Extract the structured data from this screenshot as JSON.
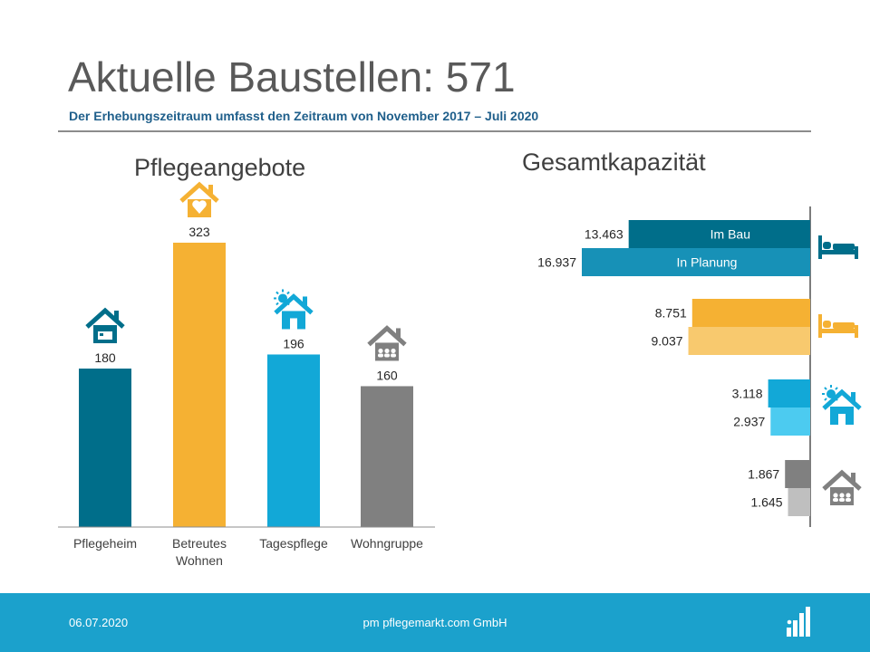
{
  "header": {
    "title": "Aktuelle Baustellen: 571",
    "subtitle": "Der Erhebungszeitraum umfasst den Zeitraum von November 2017 – Juli 2020"
  },
  "colors": {
    "pflegeheim": "#006e8a",
    "betreutes": "#f5b133",
    "tagespflege": "#12a8d7",
    "wohngruppe": "#808080",
    "pflegeheim_light": "#1791b7",
    "betreutes_light": "#f8c96e",
    "tagespflege_light": "#4ccbf0",
    "wohngruppe_light": "#bfbfbf"
  },
  "chart_data": [
    {
      "type": "bar",
      "title": "Pflegeangebote",
      "categories": [
        "Pflegeheim",
        "Betreutes Wohnen",
        "Tagespflege",
        "Wohngruppe"
      ],
      "values": [
        180,
        323,
        196,
        160
      ],
      "value_labels": [
        "180",
        "323",
        "196",
        "160"
      ],
      "icons": [
        "house-bed-icon",
        "house-heart-icon",
        "house-sun-icon",
        "house-people-icon"
      ],
      "ylim": [
        0,
        340
      ],
      "grid": false
    },
    {
      "type": "bar",
      "orientation": "horizontal",
      "title": "Gesamtkapazität",
      "groups": [
        "Pflegeheim",
        "Betreutes Wohnen",
        "Tagespflege",
        "Wohngruppe"
      ],
      "series": [
        {
          "name": "Im Bau",
          "values": [
            13463,
            8751,
            3118,
            1867
          ],
          "labels": [
            "13.463",
            "8.751",
            "3.118",
            "1.867"
          ]
        },
        {
          "name": "In Planung",
          "values": [
            16937,
            9037,
            2937,
            1645
          ],
          "labels": [
            "16.937",
            "9.037",
            "2.937",
            "1.645"
          ]
        }
      ],
      "icons": [
        "bed-icon",
        "bed-icon",
        "house-sun-icon",
        "house-people-icon"
      ],
      "xlim": [
        0,
        17500
      ],
      "grid": false
    }
  ],
  "footer": {
    "date": "06.07.2020",
    "company": "pm pflegemarkt.com GmbH",
    "logo_icon": "bar-logo-icon"
  }
}
